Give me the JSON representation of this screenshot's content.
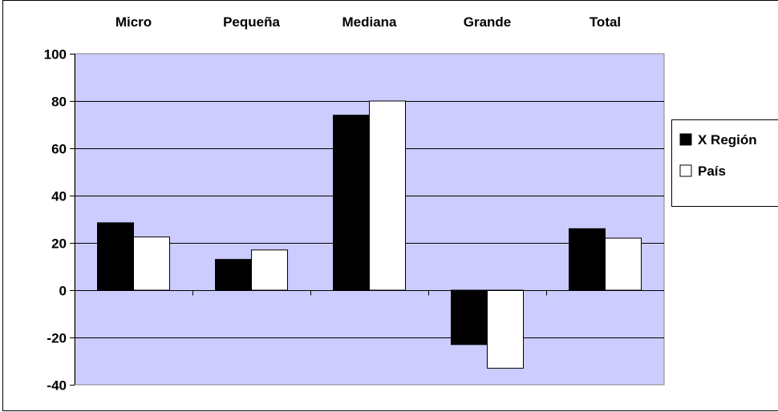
{
  "chart_data": {
    "type": "bar",
    "categories": [
      "Micro",
      "Pequeña",
      "Mediana",
      "Grande",
      "Total"
    ],
    "series": [
      {
        "name": "X Región",
        "color": "#000000",
        "values": [
          28.5,
          13,
          74,
          -23,
          26
        ]
      },
      {
        "name": "País",
        "color": "#ffffff",
        "values": [
          22.5,
          17,
          80,
          -33,
          22
        ]
      }
    ],
    "ylim": [
      -40,
      100
    ],
    "yticks": [
      100,
      80,
      60,
      40,
      20,
      0,
      -20,
      -40
    ],
    "grid": true,
    "legend_position": "right",
    "category_labels_position": "top",
    "plot_background": "#ccccff",
    "title": "",
    "xlabel": "",
    "ylabel": ""
  }
}
